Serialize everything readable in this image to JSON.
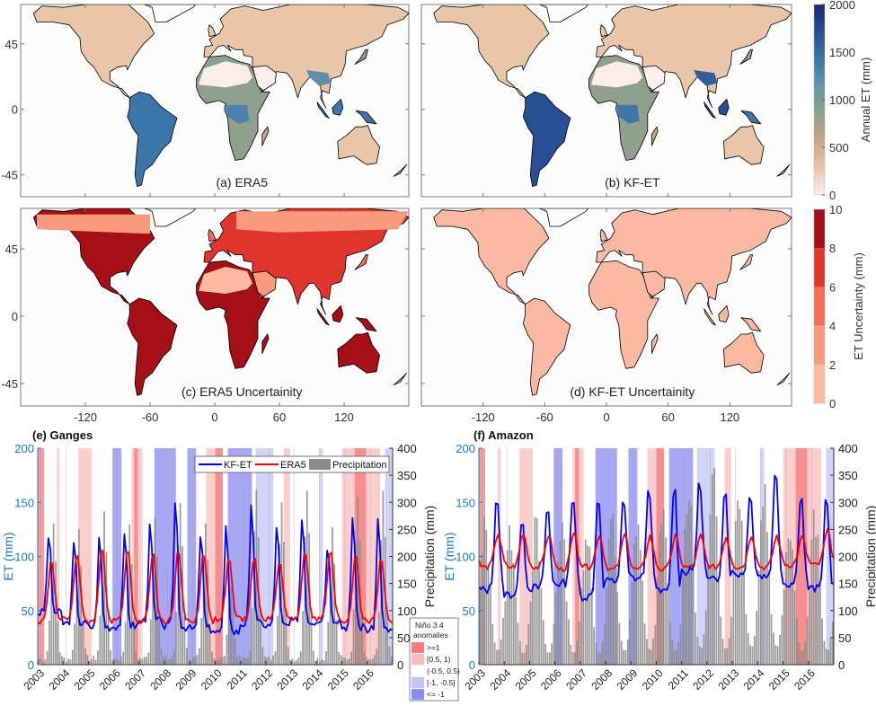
{
  "maps": {
    "lat_ticks": [
      "45",
      "0",
      "-45"
    ],
    "lon_ticks": [
      "-120",
      "-60",
      "0",
      "60",
      "120"
    ],
    "panels": [
      {
        "id": "a",
        "label": "(a) ERA5",
        "scale": "et",
        "intensity": 0.6
      },
      {
        "id": "b",
        "label": "(b) KF-ET",
        "scale": "et",
        "intensity": 0.8
      },
      {
        "id": "c",
        "label": "(c) ERA5 Uncertainity",
        "scale": "unc",
        "intensity": 0.9
      },
      {
        "id": "d",
        "label": "(d) KF-ET Uncertainity",
        "scale": "unc",
        "intensity": 0.15
      }
    ],
    "colorbar_et": {
      "label": "Annual ET (mm)",
      "ticks": [
        "2000",
        "1500",
        "1000",
        "500",
        "0"
      ],
      "range": [
        0,
        2000
      ],
      "colors": [
        "#fdf0ee",
        "#e9c6a8",
        "#c9a784",
        "#8fa08c",
        "#5e9aa5",
        "#3b76a8",
        "#274f93",
        "#1a2670"
      ]
    },
    "colorbar_unc": {
      "label": "ET Uncertainty (mm)",
      "ticks": [
        "10",
        "8",
        "6",
        "4",
        "2",
        "0"
      ],
      "range": [
        0,
        10
      ],
      "bins": [
        "#fbb9a1",
        "#fa9a7c",
        "#f56d52",
        "#e0342c",
        "#a50f15"
      ]
    }
  },
  "chart_data": [
    {
      "type": "line",
      "title": "(e) Ganges",
      "ylabel": "ET (mm)",
      "ylabel_right": "Precipitation (mm)",
      "ylim": [
        0,
        200
      ],
      "ylim_right": [
        0,
        400
      ],
      "yticks": [
        "200",
        "150",
        "100",
        "50",
        "0"
      ],
      "yticks_right": [
        "400",
        "350",
        "300",
        "250",
        "200",
        "150",
        "100",
        "50",
        "0"
      ],
      "x_ticks": [
        "2003",
        "2004",
        "2005",
        "2006",
        "2007",
        "2008",
        "2009",
        "2010",
        "2011",
        "2012",
        "2013",
        "2014",
        "2015",
        "2016"
      ],
      "x_range": [
        2003,
        2017
      ],
      "legend": [
        "KF-ET",
        "ERA5",
        "Precipitation"
      ],
      "legend_position": "top-right",
      "series": [
        {
          "name": "KF-ET",
          "color": "#0000ff",
          "annual_peaks": [
            123,
            115,
            120,
            122,
            131,
            156,
            125,
            131,
            150,
            134,
            140,
            113,
            138,
            140
          ],
          "annual_troughs": [
            48,
            38,
            35,
            36,
            40,
            35,
            33,
            30,
            38,
            36,
            40,
            42,
            35,
            32
          ]
        },
        {
          "name": "ERA5",
          "color": "#ff0000",
          "annual_peaks": [
            98,
            103,
            108,
            106,
            104,
            107,
            105,
            98,
            100,
            98,
            107,
            106,
            103,
            100
          ],
          "annual_troughs": [
            40,
            42,
            40,
            42,
            40,
            40,
            40,
            42,
            42,
            42,
            42,
            42,
            40,
            40
          ]
        },
        {
          "name": "Precipitation",
          "color": "#888888",
          "annual_peaks": [
            245,
            240,
            275,
            243,
            265,
            288,
            248,
            135,
            315,
            295,
            313,
            240,
            305,
            305
          ]
        }
      ],
      "enso_phases": [
        {
          "start": 2003.0,
          "end": 2003.25,
          "class": ">=1"
        },
        {
          "start": 2003.75,
          "end": 2003.85,
          "class": "[0.5, 1)"
        },
        {
          "start": 2004.6,
          "end": 2005.1,
          "class": "[0.5, 1)"
        },
        {
          "start": 2005.95,
          "end": 2006.3,
          "class": "<= -1"
        },
        {
          "start": 2006.7,
          "end": 2007.1,
          "class": "[0.5, 1)"
        },
        {
          "start": 2006.8,
          "end": 2006.95,
          "class": ">=1"
        },
        {
          "start": 2007.6,
          "end": 2008.45,
          "class": "<= -1"
        },
        {
          "start": 2008.9,
          "end": 2009.25,
          "class": "<= -1"
        },
        {
          "start": 2009.65,
          "end": 2010.3,
          "class": "[0.5, 1)"
        },
        {
          "start": 2010.0,
          "end": 2010.3,
          "class": ">=1"
        },
        {
          "start": 2010.5,
          "end": 2011.45,
          "class": "<= -1"
        },
        {
          "start": 2011.6,
          "end": 2012.3,
          "class": "[-1, -0.5]"
        },
        {
          "start": 2012.7,
          "end": 2012.95,
          "class": "[0.5, 1)"
        },
        {
          "start": 2014.1,
          "end": 2014.25,
          "class": "[-1, -0.5]"
        },
        {
          "start": 2015.0,
          "end": 2016.5,
          "class": "[0.5, 1)"
        },
        {
          "start": 2015.5,
          "end": 2015.95,
          "class": ">=1"
        },
        {
          "start": 2016.7,
          "end": 2017.0,
          "class": "[-1, -0.5]"
        }
      ]
    },
    {
      "type": "line",
      "title": "(f) Amazon",
      "ylabel": "ET (mm)",
      "ylabel_right": "Precipitation (mm)",
      "ylim": [
        0,
        200
      ],
      "ylim_right": [
        0,
        400
      ],
      "yticks": [
        "200",
        "150",
        "100",
        "50",
        "0"
      ],
      "yticks_right": [
        "400",
        "350",
        "300",
        "250",
        "200",
        "150",
        "100",
        "50",
        "0"
      ],
      "x_ticks": [
        "2003",
        "2004",
        "2005",
        "2006",
        "2007",
        "2008",
        "2009",
        "2010",
        "2011",
        "2012",
        "2013",
        "2014",
        "2015",
        "2016"
      ],
      "x_range": [
        2003,
        2017
      ],
      "series": [
        {
          "name": "KF-ET",
          "color": "#0000ff",
          "annual_peaks": [
            158,
            139,
            147,
            158,
            160,
            154,
            165,
            169,
            172,
            165,
            161,
            183,
            160,
            159
          ],
          "annual_troughs": [
            69,
            65,
            71,
            75,
            63,
            77,
            80,
            67,
            86,
            78,
            84,
            82,
            75,
            70
          ]
        },
        {
          "name": "ERA5",
          "color": "#ff0000",
          "annual_peaks": [
            121,
            121,
            120,
            121,
            120,
            120,
            119,
            119,
            119,
            118,
            120,
            119,
            118,
            123
          ],
          "annual_troughs": [
            90,
            90,
            90,
            88,
            90,
            88,
            88,
            88,
            90,
            90,
            90,
            90,
            92,
            92
          ]
        },
        {
          "name": "Precipitation",
          "color": "#888888",
          "annual_peaks": [
            265,
            262,
            262,
            270,
            270,
            275,
            280,
            285,
            340,
            345,
            345,
            345,
            280,
            280
          ],
          "annual_troughs": [
            20,
            15,
            14,
            15,
            15,
            18,
            20,
            18,
            22,
            20,
            25,
            25,
            18,
            20
          ]
        }
      ],
      "enso_phases": [
        {
          "start": 2003.0,
          "end": 2003.25,
          "class": ">=1"
        },
        {
          "start": 2003.75,
          "end": 2003.85,
          "class": "[0.5, 1)"
        },
        {
          "start": 2004.6,
          "end": 2005.1,
          "class": "[0.5, 1)"
        },
        {
          "start": 2005.95,
          "end": 2006.3,
          "class": "<= -1"
        },
        {
          "start": 2006.7,
          "end": 2007.1,
          "class": "[0.5, 1)"
        },
        {
          "start": 2006.8,
          "end": 2006.95,
          "class": ">=1"
        },
        {
          "start": 2007.6,
          "end": 2008.45,
          "class": "<= -1"
        },
        {
          "start": 2008.9,
          "end": 2009.25,
          "class": "<= -1"
        },
        {
          "start": 2009.65,
          "end": 2010.3,
          "class": "[0.5, 1)"
        },
        {
          "start": 2010.0,
          "end": 2010.3,
          "class": ">=1"
        },
        {
          "start": 2010.5,
          "end": 2011.45,
          "class": "<= -1"
        },
        {
          "start": 2011.6,
          "end": 2012.3,
          "class": "[-1, -0.5]"
        },
        {
          "start": 2012.7,
          "end": 2012.95,
          "class": "[0.5, 1)"
        },
        {
          "start": 2014.1,
          "end": 2014.25,
          "class": "[-1, -0.5]"
        },
        {
          "start": 2015.0,
          "end": 2016.5,
          "class": "[0.5, 1)"
        },
        {
          "start": 2015.5,
          "end": 2015.95,
          "class": ">=1"
        },
        {
          "start": 2016.7,
          "end": 2017.0,
          "class": "[-1, -0.5]"
        }
      ]
    }
  ],
  "enso_legend": {
    "title_line1": "Niño 3.4",
    "title_line2": "anomalies",
    "items": [
      {
        "label": ">=1",
        "color": "#f77a7a"
      },
      {
        "label": "[0.5, 1)",
        "color": "#fbbcbc"
      },
      {
        "label": "(-0.5, 0.5)",
        "color": "#ffffff"
      },
      {
        "label": "[-1, -0.5]",
        "color": "#c4c4f8"
      },
      {
        "label": "<= -1",
        "color": "#8a8af0"
      }
    ]
  }
}
